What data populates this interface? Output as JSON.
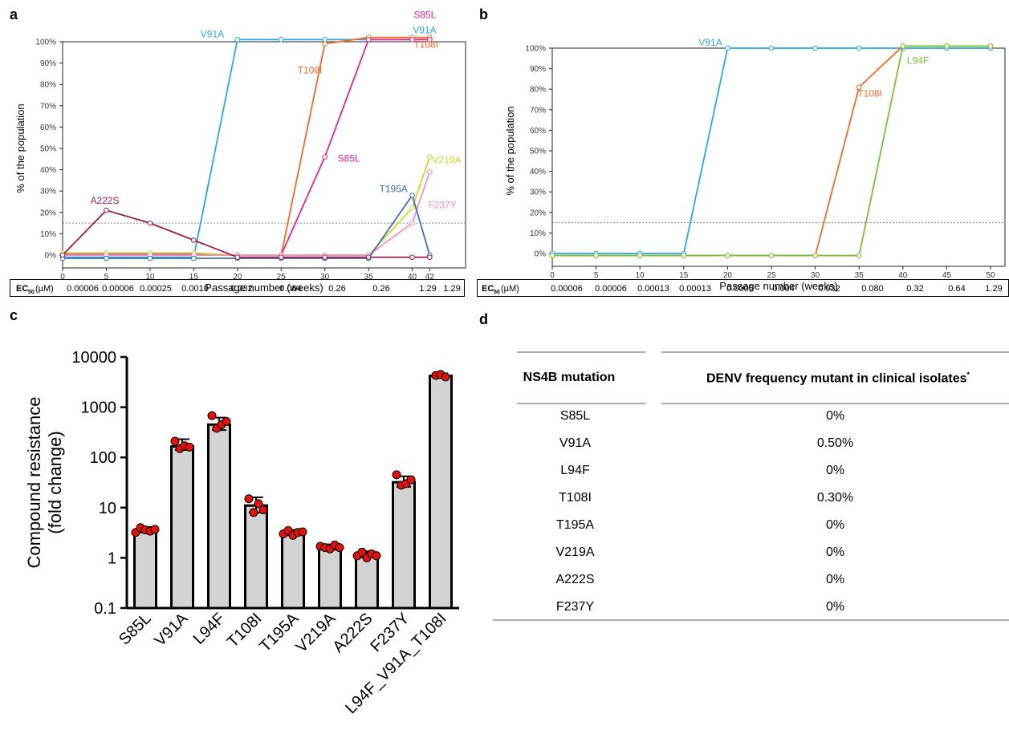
{
  "panels": {
    "a": "a",
    "b": "b",
    "c": "c",
    "d": "d"
  },
  "chart_data": [
    {
      "panel": "a",
      "type": "line",
      "ylabel": "% of the population",
      "xlabel": "Passage number (weeks)",
      "xticks": [
        0,
        5,
        10,
        15,
        20,
        25,
        30,
        35,
        40,
        42
      ],
      "yticks": [
        "0%",
        "10%",
        "20%",
        "30%",
        "40%",
        "50%",
        "60%",
        "70%",
        "80%",
        "90%",
        "100%"
      ],
      "ylim": [
        0,
        100
      ],
      "threshold": 15,
      "ec50_label": "EC",
      "ec50_sub": "50",
      "ec50_unit": " (µM)",
      "ec50": [
        "0.00006",
        "0.00006",
        "0.00025",
        "0.0010",
        "0.032",
        "0.064",
        "0.26",
        "0.26",
        "1.29",
        "1.29"
      ],
      "series": [
        {
          "name": "V91A",
          "color": "#29a8e0",
          "x": [
            0,
            5,
            10,
            15,
            20,
            25,
            30,
            35,
            40,
            42
          ],
          "y": [
            -1,
            -1,
            -1,
            -1,
            101,
            101,
            101,
            101,
            101,
            101
          ]
        },
        {
          "name": "T108I",
          "color": "#f06a2a",
          "x": [
            0,
            5,
            10,
            15,
            20,
            25,
            30,
            35,
            40,
            42
          ],
          "y": [
            0,
            0,
            0,
            0,
            0,
            0,
            99,
            102,
            102,
            102
          ]
        },
        {
          "name": "S85L",
          "color": "#e0248a",
          "x": [
            0,
            5,
            10,
            15,
            20,
            25,
            30,
            35,
            40,
            42
          ],
          "y": [
            0.5,
            0.5,
            0.5,
            0.5,
            0,
            0,
            46,
            101,
            101,
            101
          ]
        },
        {
          "name": "V219A",
          "color": "#c9d82c",
          "x": [
            0,
            5,
            10,
            15,
            20,
            25,
            30,
            35,
            40,
            42
          ],
          "y": [
            1,
            1,
            1,
            1,
            0,
            0,
            0,
            0,
            22,
            46
          ]
        },
        {
          "name": "F237Y",
          "color": "#f28fbe",
          "x": [
            0,
            5,
            10,
            15,
            20,
            25,
            30,
            35,
            40,
            42
          ],
          "y": [
            0,
            0,
            0,
            0,
            0,
            0,
            0,
            0,
            15,
            39
          ]
        },
        {
          "name": "T195A",
          "color": "#3f6fb6",
          "x": [
            0,
            5,
            10,
            15,
            20,
            25,
            30,
            35,
            40,
            42
          ],
          "y": [
            -1.5,
            -1.5,
            -1.5,
            -1.5,
            -1.5,
            -1.5,
            -1.5,
            -1.5,
            28,
            0
          ]
        },
        {
          "name": "A222S",
          "color": "#9b1c4f",
          "x": [
            0,
            5,
            10,
            15,
            20,
            25,
            30,
            35,
            40,
            42
          ],
          "y": [
            0,
            21,
            15,
            7,
            -1,
            -1,
            -1,
            -1,
            -1,
            -1
          ]
        }
      ]
    },
    {
      "panel": "b",
      "type": "line",
      "ylabel": "% of the population",
      "xlabel": "Passage number (weeks)",
      "xticks": [
        0,
        5,
        10,
        15,
        20,
        25,
        30,
        35,
        40,
        45,
        50
      ],
      "yticks": [
        "0%",
        "10%",
        "20%",
        "30%",
        "40%",
        "50%",
        "60%",
        "70%",
        "80%",
        "90%",
        "100%"
      ],
      "ylim": [
        0,
        100
      ],
      "threshold": 15,
      "ec50_label": "EC",
      "ec50_sub": "50",
      "ec50_unit": " (µM)",
      "ec50": [
        "0.00006",
        "0.00006",
        "0.00013",
        "0.00013",
        "0.0005",
        "0.004",
        "0.032",
        "0.080",
        "0.32",
        "0.64",
        "1.29"
      ],
      "series": [
        {
          "name": "V91A",
          "color": "#29a8e0",
          "x": [
            0,
            5,
            10,
            15,
            20,
            25,
            30,
            35,
            40,
            45,
            50
          ],
          "y": [
            0,
            0,
            0,
            0,
            100,
            100,
            100,
            100,
            100,
            100,
            100
          ]
        },
        {
          "name": "T108I",
          "color": "#f06a2a",
          "x": [
            0,
            5,
            10,
            15,
            20,
            25,
            30,
            35,
            40,
            45,
            50
          ],
          "y": [
            -1,
            -1,
            -1,
            -1,
            -1,
            -1,
            -1,
            81,
            101,
            101,
            101
          ]
        },
        {
          "name": "L94F",
          "color": "#7bbf3a",
          "x": [
            0,
            5,
            10,
            15,
            20,
            25,
            30,
            35,
            40,
            45,
            50
          ],
          "y": [
            -1,
            -1,
            -1,
            -1,
            -1,
            -1,
            -1,
            -1,
            101,
            101,
            101
          ]
        }
      ]
    },
    {
      "panel": "c",
      "type": "bar",
      "ylabel_line1": "Compound resistance",
      "ylabel_line2": "(fold change)",
      "yscale": "log",
      "ylim": [
        0.1,
        10000
      ],
      "yticks": [
        "0.1",
        "1",
        "10",
        "100",
        "1000",
        "10000"
      ],
      "categories": [
        "S85L",
        "V91A",
        "L94F",
        "T108I",
        "T195A",
        "V219A",
        "A222S",
        "F237Y",
        "L94F_V91A_T108I"
      ],
      "values": [
        3.6,
        165,
        450,
        11,
        3.1,
        1.6,
        1.15,
        32,
        4200
      ],
      "errors_low": [
        3.2,
        140,
        350,
        8,
        2.8,
        1.45,
        1.02,
        26,
        3800
      ],
      "errors_high": [
        4.1,
        230,
        620,
        16,
        3.6,
        1.85,
        1.35,
        42,
        4700
      ],
      "points": [
        [
          3.2,
          4.0,
          3.6,
          3.4,
          3.7
        ],
        [
          210,
          150,
          170,
          160
        ],
        [
          680,
          380,
          450,
          520
        ],
        [
          15,
          8,
          12,
          9
        ],
        [
          3.0,
          3.5,
          2.8,
          3.2,
          3.3
        ],
        [
          1.7,
          1.6,
          1.5,
          1.8,
          1.6
        ],
        [
          1.1,
          1.3,
          1.0,
          1.2,
          1.1
        ],
        [
          45,
          28,
          30,
          36
        ],
        [
          4300,
          4500,
          4000
        ]
      ]
    }
  ],
  "table": {
    "headers": [
      "NS4B mutation",
      "DENV frequency mutant in clinical isolates"
    ],
    "header_sup": "*",
    "rows": [
      [
        "S85L",
        "0%"
      ],
      [
        "V91A",
        "0.50%"
      ],
      [
        "L94F",
        "0%"
      ],
      [
        "T108I",
        "0.30%"
      ],
      [
        "T195A",
        "0%"
      ],
      [
        "V219A",
        "0%"
      ],
      [
        "A222S",
        "0%"
      ],
      [
        "F237Y",
        "0%"
      ]
    ]
  }
}
